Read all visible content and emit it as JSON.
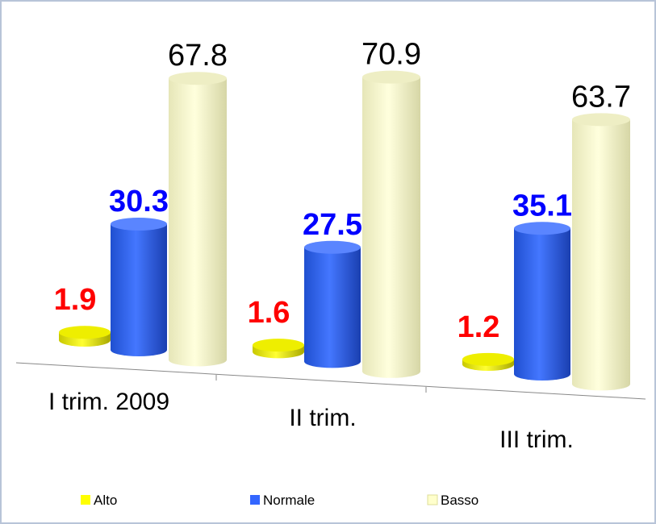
{
  "chart_data": {
    "type": "bar",
    "categories": [
      "I trim. 2009",
      "II trim.",
      "III trim."
    ],
    "series": [
      {
        "name": "Alto",
        "color": "#ffff00",
        "values": [
          1.9,
          1.6,
          1.2
        ]
      },
      {
        "name": "Normale",
        "color": "#3366ff",
        "values": [
          30.3,
          27.5,
          35.1
        ]
      },
      {
        "name": "Basso",
        "color": "#ffffcc",
        "values": [
          67.8,
          70.9,
          63.7
        ]
      }
    ]
  }
}
